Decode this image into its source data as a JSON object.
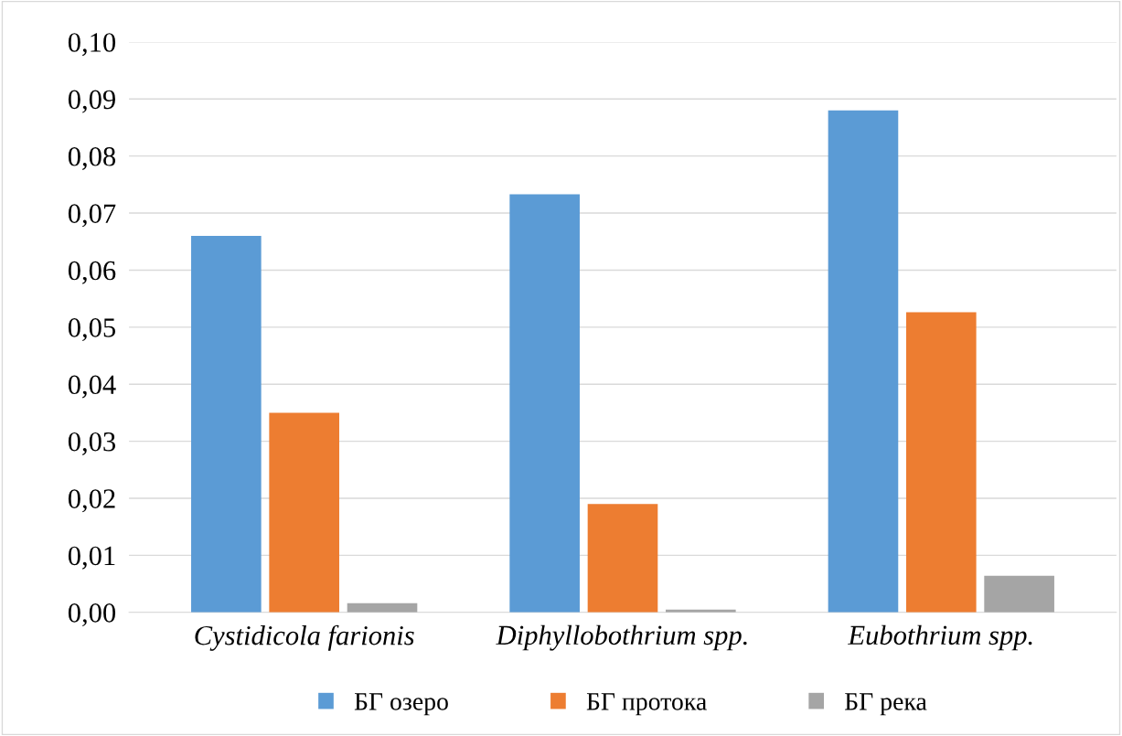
{
  "chart_data": {
    "type": "bar",
    "categories": [
      "Cystidicola farionis",
      "Diphyllobothrium spp.",
      "Eubothrium spp."
    ],
    "series": [
      {
        "name": "БГ озеро",
        "color": "#5b9bd5",
        "values": [
          0.066,
          0.0733,
          0.088
        ]
      },
      {
        "name": "БГ протока",
        "color": "#ed7d31",
        "values": [
          0.035,
          0.019,
          0.0526
        ]
      },
      {
        "name": "БГ река",
        "color": "#a5a5a5",
        "values": [
          0.0016,
          0.0005,
          0.0064
        ]
      }
    ],
    "ylim": [
      0,
      0.1
    ],
    "yticks": [
      {
        "value": 0,
        "label": "0,00"
      },
      {
        "value": 0.01,
        "label": "0,01"
      },
      {
        "value": 0.02,
        "label": "0,02"
      },
      {
        "value": 0.03,
        "label": "0,03"
      },
      {
        "value": 0.04,
        "label": "0,04"
      },
      {
        "value": 0.05,
        "label": "0,05"
      },
      {
        "value": 0.06,
        "label": "0,06"
      },
      {
        "value": 0.07,
        "label": "0,07"
      },
      {
        "value": 0.08,
        "label": "0,08"
      },
      {
        "value": 0.09,
        "label": "0,09"
      },
      {
        "value": 0.1,
        "label": "0,10"
      }
    ],
    "grid": "y",
    "legend": "bottom"
  }
}
